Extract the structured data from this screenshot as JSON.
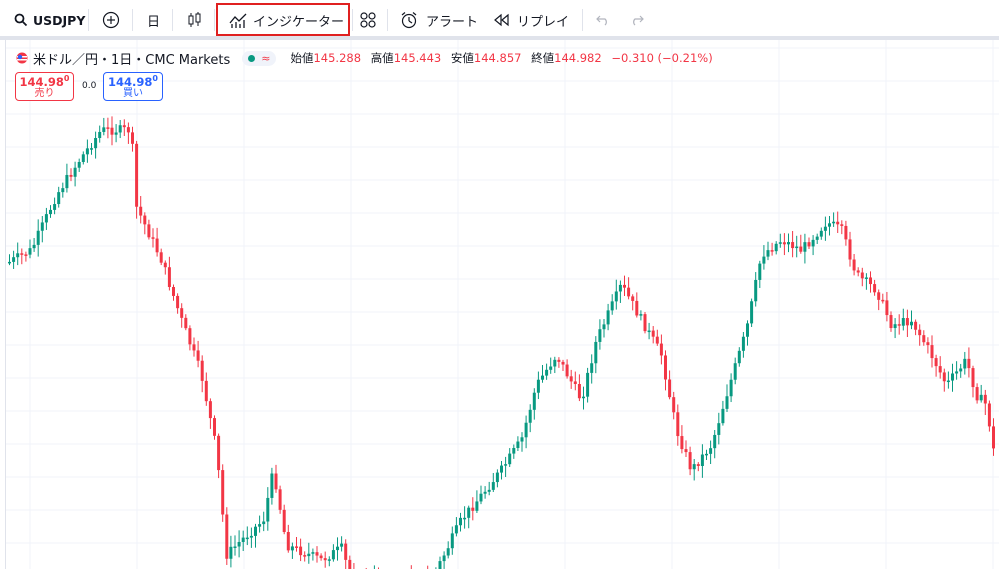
{
  "toolbar": {
    "symbol": "USDJPY",
    "interval": "日",
    "indicators_label": "インジケーター",
    "alert_label": "アラート",
    "replay_label": "リプレイ"
  },
  "legend": {
    "title": "米ドル／円・1日・CMC Markets",
    "wave_glyph": "≈",
    "open_label": "始値",
    "open": "145.288",
    "high_label": "高値",
    "high": "145.443",
    "low_label": "安値",
    "low": "144.857",
    "close_label": "終値",
    "close": "144.982",
    "change": "−0.310 (−0.21%)"
  },
  "trade": {
    "sell_price": "144.98",
    "sell_price_sup": "0",
    "sell_label": "売り",
    "spread": "0.0",
    "buy_price": "144.98",
    "buy_price_sup": "0",
    "buy_label": "買い"
  },
  "colors": {
    "up": "#089981",
    "down": "#f23645",
    "highlight": "#e02020"
  }
}
